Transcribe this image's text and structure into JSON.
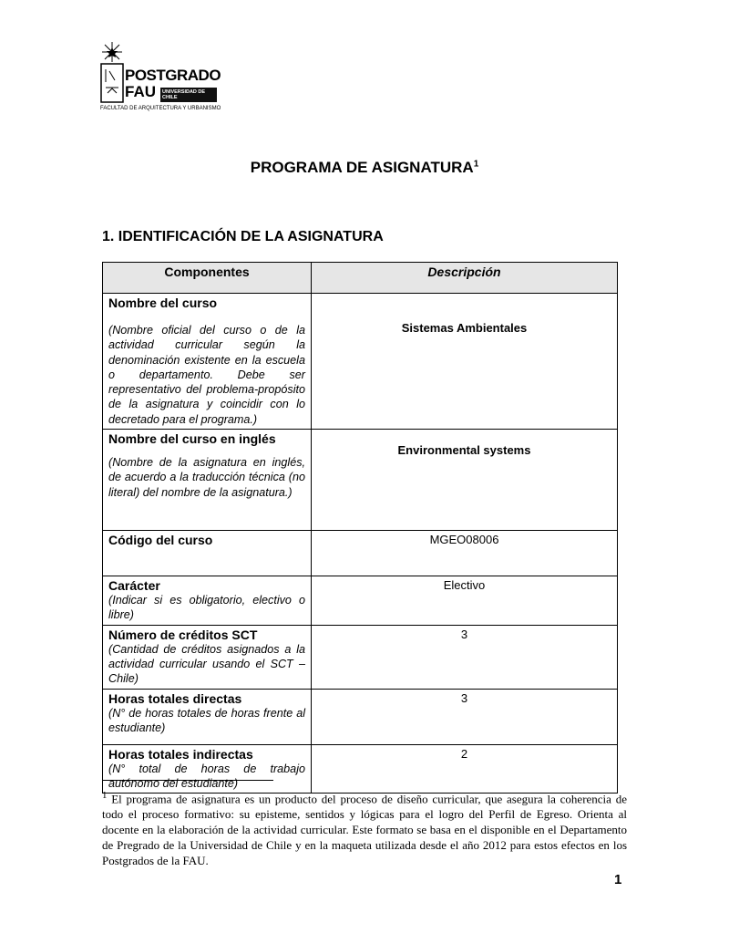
{
  "logo": {
    "line1": "POSTGRADO",
    "line2": "FAU",
    "badge": "UNIVERSIDAD DE CHILE",
    "faculty": "FACULTAD DE ARQUITECTURA Y URBANISMO"
  },
  "title": "PROGRAMA DE ASIGNATURA",
  "title_ref": "1",
  "section": "1. IDENTIFICACIÓN DE LA ASIGNATURA",
  "table": {
    "headers": [
      "Componentes",
      "Descripción"
    ],
    "rows": [
      {
        "label": "Nombre del curso",
        "help": "(Nombre oficial del curso o de la actividad curricular según la denominación existente en la escuela o departamento. Debe ser representativo del problema-propósito de la asignatura y coincidir con lo decretado para el programa.)",
        "value": "Sistemas Ambientales"
      },
      {
        "label": "Nombre del curso en inglés",
        "help": "(Nombre de la asignatura en inglés, de acuerdo a la traducción técnica (no literal) del nombre de la asignatura.)",
        "value": "Environmental systems"
      },
      {
        "label": "Código del curso",
        "help": "",
        "value": "MGEO08006"
      },
      {
        "label": "Carácter",
        "help": "(Indicar si es obligatorio, electivo o libre)",
        "value": "Electivo"
      },
      {
        "label": "Número de créditos SCT",
        "help": "(Cantidad de créditos asignados a la actividad curricular usando el SCT – Chile)",
        "value": "3"
      },
      {
        "label": "Horas totales directas",
        "help": "(N° de horas totales de horas frente al estudiante)",
        "value": "3"
      },
      {
        "label": "Horas totales indirectas",
        "help": "(N° total de horas de trabajo autónomo del estudiante)",
        "value": "2"
      }
    ]
  },
  "footnote": {
    "mark": "1",
    "text": " El programa de asignatura es un producto del proceso de diseño curricular, que asegura la coherencia de todo el proceso formativo: su episteme, sentidos y lógicas para el logro del Perfil de Egreso. Orienta al docente en la elaboración de la actividad curricular. Este formato se basa en el disponible en el Departamento de Pregrado de la Universidad de Chile y en la maqueta utilizada desde el año 2012 para estos efectos en los Postgrados de la FAU."
  },
  "page_number": "1"
}
